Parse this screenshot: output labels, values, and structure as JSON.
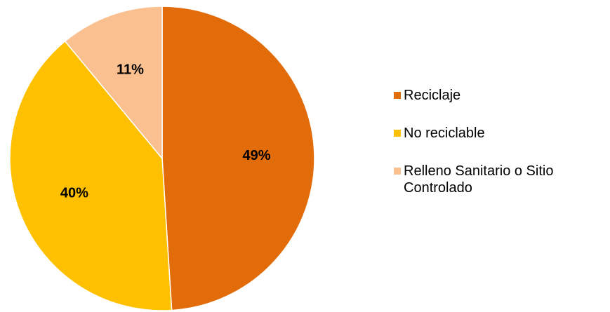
{
  "chart_data": {
    "type": "pie",
    "title": "",
    "slices": [
      {
        "label": "Reciclaje",
        "value": 49,
        "value_label": "49%",
        "color": "#E36C0A"
      },
      {
        "label": "No reciclable",
        "value": 40,
        "value_label": "40%",
        "color": "#FFC000"
      },
      {
        "label": "Relleno Sanitario o Sitio Controlado",
        "value": 11,
        "value_label": "11%",
        "color": "#FAC090"
      }
    ],
    "legend": {
      "position": "right"
    },
    "start_angle_deg": 0,
    "direction": "clockwise",
    "slice_border_color": "#FFFFFF"
  }
}
